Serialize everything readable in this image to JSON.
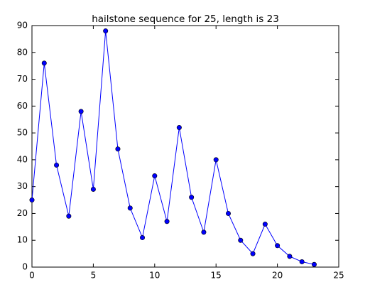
{
  "chart_data": {
    "type": "line",
    "title": "hailstone sequence for 25, length is 23",
    "x": [
      0,
      1,
      2,
      3,
      4,
      5,
      6,
      7,
      8,
      9,
      10,
      11,
      12,
      13,
      14,
      15,
      16,
      17,
      18,
      19,
      20,
      21,
      22,
      23
    ],
    "values": [
      25,
      76,
      38,
      19,
      58,
      29,
      88,
      44,
      22,
      11,
      34,
      17,
      52,
      26,
      13,
      40,
      20,
      10,
      5,
      16,
      8,
      4,
      2,
      1
    ],
    "color": "#0000ff",
    "xlim": [
      0,
      25
    ],
    "xticks": [
      0,
      5,
      10,
      15,
      20,
      25
    ],
    "ylim": [
      0,
      90
    ],
    "yticks": [
      0,
      10,
      20,
      30,
      40,
      50,
      60,
      70,
      80,
      90
    ],
    "grid": false
  }
}
